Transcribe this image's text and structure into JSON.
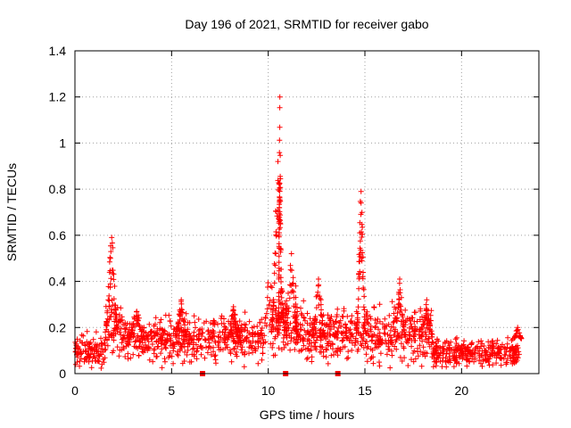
{
  "chart_data": {
    "type": "scatter",
    "title": "Day 196 of 2021, SRMTID for receiver gabo",
    "xlabel": "GPS time / hours",
    "ylabel": "SRMTID / TECUs",
    "xlim": [
      0,
      24
    ],
    "ylim": [
      0,
      1.4
    ],
    "x_ticks": [
      0,
      5,
      10,
      15,
      20
    ],
    "x_tick_labels": [
      "0",
      "5",
      "10",
      "15",
      "20"
    ],
    "y_ticks": [
      0,
      0.2,
      0.4,
      0.6,
      0.8,
      1.0,
      1.2,
      1.4
    ],
    "y_tick_labels": [
      "0",
      "0.2",
      "0.4",
      "0.6",
      "0.8",
      "1",
      "1.2",
      "1.4"
    ],
    "grid": true,
    "marker": "+",
    "color": "#ff0000",
    "baseline_markers_x": [
      6.6,
      10.9,
      13.6
    ],
    "background_band": {
      "description": "dense noisy scatter of many satellites",
      "segments": [
        {
          "x0": 0.0,
          "x1": 1.6,
          "y_mean": 0.1,
          "y_spread": 0.06
        },
        {
          "x0": 1.6,
          "x1": 2.4,
          "y_mean": 0.22,
          "y_spread": 0.1
        },
        {
          "x0": 2.4,
          "x1": 4.0,
          "y_mean": 0.15,
          "y_spread": 0.07
        },
        {
          "x0": 4.0,
          "x1": 9.8,
          "y_mean": 0.15,
          "y_spread": 0.08
        },
        {
          "x0": 9.8,
          "x1": 11.5,
          "y_mean": 0.22,
          "y_spread": 0.12
        },
        {
          "x0": 11.5,
          "x1": 18.5,
          "y_mean": 0.17,
          "y_spread": 0.09
        },
        {
          "x0": 18.5,
          "x1": 23.0,
          "y_mean": 0.09,
          "y_spread": 0.045
        }
      ]
    },
    "peaks": [
      {
        "x": 1.9,
        "y": 0.59,
        "width": 0.35
      },
      {
        "x": 3.2,
        "y": 0.27,
        "width": 0.4
      },
      {
        "x": 5.5,
        "y": 0.32,
        "width": 0.3
      },
      {
        "x": 8.2,
        "y": 0.29,
        "width": 0.3
      },
      {
        "x": 10.5,
        "y": 0.92,
        "width": 0.35
      },
      {
        "x": 10.6,
        "y": 1.2,
        "width": 0.08
      },
      {
        "x": 11.2,
        "y": 0.52,
        "width": 0.3
      },
      {
        "x": 12.6,
        "y": 0.41,
        "width": 0.35
      },
      {
        "x": 14.8,
        "y": 0.79,
        "width": 0.25
      },
      {
        "x": 16.8,
        "y": 0.41,
        "width": 0.3
      },
      {
        "x": 18.2,
        "y": 0.32,
        "width": 0.3
      },
      {
        "x": 22.9,
        "y": 0.2,
        "width": 0.2
      }
    ]
  }
}
